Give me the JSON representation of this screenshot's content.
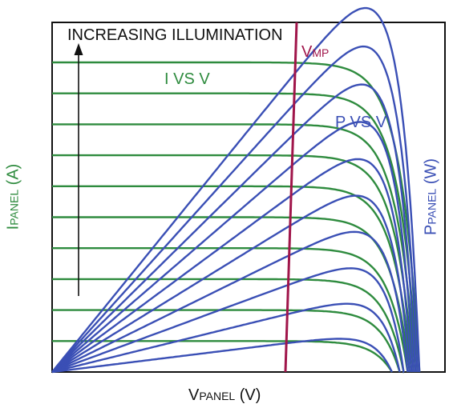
{
  "chart_data": {
    "type": "line",
    "title": "",
    "xlabel": {
      "main": "V",
      "sub": "PANEL",
      "unit": " (V)"
    },
    "ylabel_left": {
      "main": "I",
      "sub": "PANEL",
      "unit": " (A)"
    },
    "ylabel_right": {
      "main": "P",
      "sub": "PANEL",
      "unit": " (W)"
    },
    "ticks": "none",
    "grid": false,
    "annotations": {
      "increasing": "INCREASING ILLUMINATION",
      "i_vs_v": "I VS V",
      "p_vs_v": "P VS V",
      "vmp": {
        "main": "V",
        "sub": "MP"
      }
    },
    "colors": {
      "current_curves": "#2e8b3e",
      "power_curves": "#3a4fb5",
      "vmp_line": "#a0154a",
      "frame": "#111111",
      "text": "#111111"
    },
    "series_count": 10,
    "curve_shape": {
      "isc_levels": [
        0.1,
        0.2,
        0.3,
        0.4,
        0.5,
        0.6,
        0.7,
        0.8,
        0.9,
        1.0
      ],
      "voc_levels": [
        0.865,
        0.885,
        0.895,
        0.905,
        0.91,
        0.915,
        0.92,
        0.925,
        0.93,
        0.935
      ],
      "vmp_relative": 0.76
    }
  }
}
